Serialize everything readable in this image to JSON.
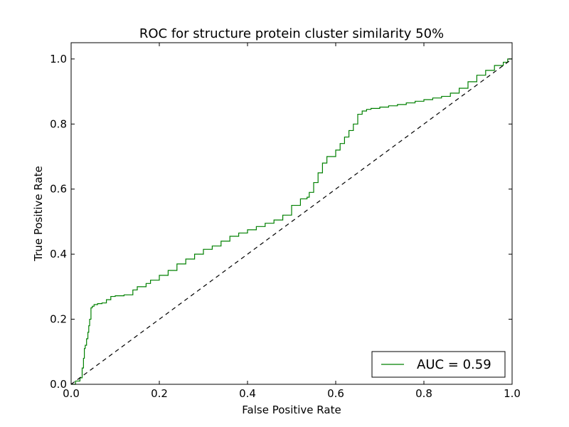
{
  "chart_data": {
    "type": "line",
    "title": "ROC for structure protein cluster similarity 50%",
    "xlabel": "False Positive Rate",
    "ylabel": "True Positive Rate",
    "xlim": [
      0.0,
      1.0
    ],
    "ylim": [
      0.0,
      1.05
    ],
    "xticks": [
      "0.0",
      "0.2",
      "0.4",
      "0.6",
      "0.8",
      "1.0"
    ],
    "yticks": [
      "0.0",
      "0.2",
      "0.4",
      "0.6",
      "0.8",
      "1.0"
    ],
    "grid": false,
    "legend_position": "lower-right",
    "series": [
      {
        "name": "AUC = 0.59",
        "color": "#008000",
        "style": "solid",
        "x": [
          0.0,
          0.01,
          0.015,
          0.02,
          0.025,
          0.028,
          0.03,
          0.032,
          0.035,
          0.038,
          0.04,
          0.042,
          0.045,
          0.048,
          0.05,
          0.052,
          0.055,
          0.06,
          0.07,
          0.08,
          0.09,
          0.1,
          0.12,
          0.14,
          0.15,
          0.17,
          0.18,
          0.2,
          0.22,
          0.24,
          0.26,
          0.28,
          0.3,
          0.32,
          0.34,
          0.36,
          0.38,
          0.4,
          0.42,
          0.44,
          0.46,
          0.48,
          0.5,
          0.52,
          0.535,
          0.54,
          0.55,
          0.56,
          0.57,
          0.58,
          0.6,
          0.61,
          0.62,
          0.63,
          0.64,
          0.65,
          0.66,
          0.67,
          0.68,
          0.7,
          0.72,
          0.74,
          0.76,
          0.78,
          0.8,
          0.82,
          0.84,
          0.86,
          0.88,
          0.9,
          0.92,
          0.94,
          0.96,
          0.98,
          0.99,
          1.0
        ],
        "y": [
          0.0,
          0.01,
          0.01,
          0.02,
          0.05,
          0.08,
          0.11,
          0.12,
          0.14,
          0.16,
          0.18,
          0.2,
          0.235,
          0.24,
          0.24,
          0.245,
          0.245,
          0.248,
          0.25,
          0.26,
          0.27,
          0.272,
          0.275,
          0.29,
          0.3,
          0.31,
          0.32,
          0.335,
          0.35,
          0.37,
          0.385,
          0.4,
          0.415,
          0.425,
          0.44,
          0.455,
          0.465,
          0.475,
          0.485,
          0.495,
          0.505,
          0.52,
          0.55,
          0.57,
          0.575,
          0.59,
          0.62,
          0.65,
          0.68,
          0.7,
          0.72,
          0.74,
          0.76,
          0.78,
          0.8,
          0.83,
          0.84,
          0.845,
          0.848,
          0.852,
          0.856,
          0.86,
          0.865,
          0.87,
          0.875,
          0.88,
          0.885,
          0.895,
          0.91,
          0.93,
          0.95,
          0.965,
          0.98,
          0.99,
          1.0,
          1.0
        ]
      },
      {
        "name": "",
        "color": "#000000",
        "style": "dashed",
        "x": [
          0.0,
          1.0
        ],
        "y": [
          0.0,
          1.0
        ]
      }
    ]
  }
}
